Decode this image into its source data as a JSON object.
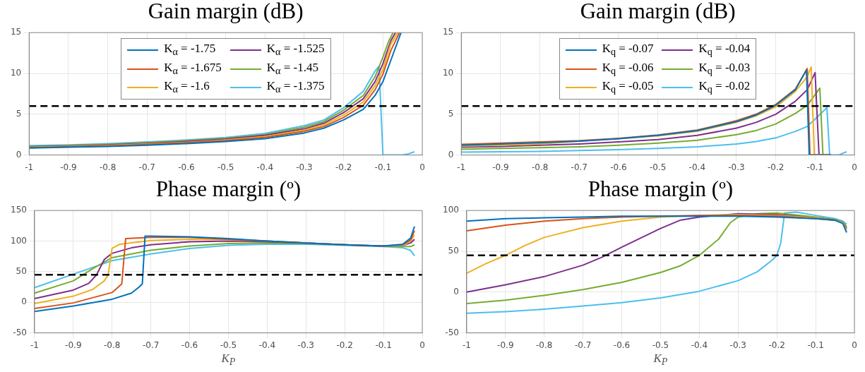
{
  "chart_data": [
    {
      "type": "line",
      "title": "Gain margin (dB)",
      "xlim": [
        -1,
        0
      ],
      "xticks": [
        -1,
        -0.9,
        -0.8,
        -0.7,
        -0.6,
        -0.5,
        -0.4,
        -0.3,
        -0.2,
        -0.1,
        0
      ],
      "ylim": [
        0,
        15
      ],
      "yticks": [
        0,
        5,
        10,
        15
      ],
      "grid": true,
      "legend": "top",
      "ref_lines": [
        {
          "axis": "y",
          "value": 6,
          "color": "#000000",
          "line_style": "dashed"
        }
      ],
      "series": [
        {
          "name": "K$_{α}$ = -1.75",
          "color": "#0072bd",
          "x": [
            -1,
            -0.9,
            -0.8,
            -0.7,
            -0.6,
            -0.5,
            -0.4,
            -0.3,
            -0.25,
            -0.2,
            -0.15,
            -0.12,
            -0.1,
            -0.08,
            -0.054
          ],
          "values": [
            0.85,
            0.95,
            1.05,
            1.2,
            1.4,
            1.65,
            2.0,
            2.7,
            3.3,
            4.3,
            5.6,
            7.3,
            9.0,
            11.6,
            15
          ]
        },
        {
          "name": "K$_{α}$ = -1.675",
          "color": "#d95319",
          "x": [
            -1,
            -0.9,
            -0.8,
            -0.7,
            -0.6,
            -0.5,
            -0.4,
            -0.3,
            -0.25,
            -0.2,
            -0.15,
            -0.12,
            -0.1,
            -0.08,
            -0.058
          ],
          "values": [
            0.9,
            1.0,
            1.12,
            1.28,
            1.5,
            1.75,
            2.15,
            2.9,
            3.5,
            4.6,
            6.1,
            8.0,
            9.9,
            12.8,
            15
          ]
        },
        {
          "name": "K$_{α}$ = -1.6",
          "color": "#edb120",
          "x": [
            -1,
            -0.9,
            -0.8,
            -0.7,
            -0.6,
            -0.5,
            -0.4,
            -0.3,
            -0.25,
            -0.2,
            -0.15,
            -0.12,
            -0.1,
            -0.08,
            -0.062
          ],
          "values": [
            0.95,
            1.05,
            1.18,
            1.35,
            1.55,
            1.85,
            2.25,
            3.05,
            3.7,
            4.9,
            6.5,
            8.5,
            10.5,
            13.6,
            15
          ]
        },
        {
          "name": "K$_{α}$ = -1.525",
          "color": "#7e2f8e",
          "x": [
            -1,
            -0.9,
            -0.8,
            -0.7,
            -0.6,
            -0.5,
            -0.4,
            -0.3,
            -0.25,
            -0.2,
            -0.15,
            -0.12,
            -0.1,
            -0.08,
            -0.068
          ],
          "values": [
            1.0,
            1.1,
            1.24,
            1.42,
            1.65,
            1.95,
            2.4,
            3.2,
            3.9,
            5.2,
            6.9,
            9.0,
            11.2,
            14.0,
            15
          ]
        },
        {
          "name": "K$_{α}$ = -1.45",
          "color": "#77ac30",
          "x": [
            -1,
            -0.9,
            -0.8,
            -0.7,
            -0.6,
            -0.5,
            -0.4,
            -0.3,
            -0.25,
            -0.2,
            -0.15,
            -0.12,
            -0.1,
            -0.085,
            -0.074
          ],
          "values": [
            1.05,
            1.15,
            1.3,
            1.5,
            1.75,
            2.05,
            2.5,
            3.4,
            4.1,
            5.5,
            7.3,
            9.6,
            12.0,
            14.0,
            15
          ]
        },
        {
          "name": "K$_{α}$ = -1.375",
          "color": "#4dbeee",
          "x": [
            -1,
            -0.9,
            -0.8,
            -0.7,
            -0.6,
            -0.5,
            -0.4,
            -0.3,
            -0.25,
            -0.2,
            -0.15,
            -0.12,
            -0.11,
            -0.1,
            -0.08,
            -0.05,
            -0.035,
            -0.02
          ],
          "values": [
            1.15,
            1.25,
            1.4,
            1.6,
            1.85,
            2.15,
            2.65,
            3.6,
            4.3,
            5.8,
            7.8,
            10.3,
            10.9,
            0,
            0,
            0,
            0.15,
            0.4
          ]
        }
      ]
    },
    {
      "type": "line",
      "title": "Gain margin (dB)",
      "xlim": [
        -1,
        0
      ],
      "xticks": [
        -1,
        -0.9,
        -0.8,
        -0.7,
        -0.6,
        -0.5,
        -0.4,
        -0.3,
        -0.2,
        -0.1,
        0
      ],
      "ylim": [
        0,
        15
      ],
      "yticks": [
        0,
        5,
        10,
        15
      ],
      "grid": true,
      "legend": "top",
      "ref_lines": [
        {
          "axis": "y",
          "value": 6,
          "color": "#000000",
          "line_style": "dashed"
        }
      ],
      "series": [
        {
          "name": "K$_{q}$ = -0.07",
          "color": "#0072bd",
          "x": [
            -1,
            -0.9,
            -0.8,
            -0.7,
            -0.6,
            -0.5,
            -0.4,
            -0.3,
            -0.25,
            -0.2,
            -0.15,
            -0.122,
            -0.115,
            -0.06
          ],
          "values": [
            1.2,
            1.35,
            1.5,
            1.7,
            2.0,
            2.4,
            3.0,
            4.1,
            4.9,
            6.1,
            8.0,
            10.4,
            0,
            0
          ]
        },
        {
          "name": "K$_{q}$ = -0.06",
          "color": "#d95319",
          "x": [
            -1,
            -0.9,
            -0.8,
            -0.7,
            -0.6,
            -0.5,
            -0.4,
            -0.3,
            -0.25,
            -0.2,
            -0.15,
            -0.125,
            -0.12,
            -0.113,
            -0.06
          ],
          "values": [
            1.3,
            1.45,
            1.6,
            1.75,
            2.05,
            2.45,
            3.05,
            4.2,
            5.0,
            6.2,
            8.1,
            10.2,
            10.6,
            0,
            0
          ]
        },
        {
          "name": "K$_{q}$ = -0.05",
          "color": "#edb120",
          "x": [
            -1,
            -0.9,
            -0.8,
            -0.7,
            -0.6,
            -0.5,
            -0.4,
            -0.3,
            -0.25,
            -0.2,
            -0.15,
            -0.12,
            -0.11,
            -0.102,
            -0.06
          ],
          "values": [
            1.1,
            1.2,
            1.35,
            1.7,
            2.0,
            2.35,
            2.9,
            4.0,
            4.8,
            5.9,
            7.8,
            9.6,
            10.8,
            0,
            0
          ]
        },
        {
          "name": "K$_{q}$ = -0.04",
          "color": "#7e2f8e",
          "x": [
            -1,
            -0.9,
            -0.8,
            -0.7,
            -0.6,
            -0.5,
            -0.4,
            -0.3,
            -0.25,
            -0.2,
            -0.15,
            -0.12,
            -0.1,
            -0.09,
            -0.06
          ],
          "values": [
            0.95,
            1.05,
            1.2,
            1.35,
            1.6,
            1.9,
            2.4,
            3.3,
            4.0,
            5.0,
            6.6,
            8.0,
            10.1,
            0,
            0
          ]
        },
        {
          "name": "K$_{q}$ = -0.03",
          "color": "#77ac30",
          "x": [
            -1,
            -0.9,
            -0.8,
            -0.7,
            -0.6,
            -0.5,
            -0.4,
            -0.3,
            -0.25,
            -0.2,
            -0.15,
            -0.12,
            -0.1,
            -0.088,
            -0.08,
            -0.06
          ],
          "values": [
            0.7,
            0.8,
            0.9,
            1.0,
            1.2,
            1.45,
            1.8,
            2.5,
            3.0,
            3.8,
            5.1,
            6.1,
            7.4,
            8.2,
            0,
            0
          ]
        },
        {
          "name": "K$_{q}$ = -0.02",
          "color": "#4dbeee",
          "x": [
            -1,
            -0.9,
            -0.8,
            -0.7,
            -0.6,
            -0.5,
            -0.4,
            -0.3,
            -0.25,
            -0.2,
            -0.15,
            -0.12,
            -0.1,
            -0.07,
            -0.063,
            -0.04,
            -0.02
          ],
          "values": [
            0.35,
            0.4,
            0.45,
            0.55,
            0.65,
            0.8,
            1.0,
            1.35,
            1.65,
            2.1,
            2.9,
            3.5,
            4.4,
            5.8,
            0,
            0,
            0.4
          ]
        }
      ]
    },
    {
      "type": "line",
      "title": "Phase margin (º)",
      "xlabel": "K$_{P}$",
      "xlim": [
        -1,
        0
      ],
      "xticks": [
        -1,
        -0.9,
        -0.8,
        -0.7,
        -0.6,
        -0.5,
        -0.4,
        -0.3,
        -0.2,
        -0.1,
        0
      ],
      "ylim": [
        -50,
        150
      ],
      "yticks": [
        -50,
        0,
        50,
        100,
        150
      ],
      "grid": true,
      "ref_lines": [
        {
          "axis": "y",
          "value": 45,
          "color": "#000000",
          "line_style": "dashed"
        }
      ],
      "series": [
        {
          "color": "#0072bd",
          "x": [
            -1,
            -0.9,
            -0.8,
            -0.75,
            -0.73,
            -0.722,
            -0.715,
            -0.7,
            -0.6,
            -0.5,
            -0.4,
            -0.3,
            -0.2,
            -0.1,
            -0.05,
            -0.03,
            -0.02
          ],
          "values": [
            -15,
            -6,
            5,
            15,
            25,
            30,
            108,
            108,
            107,
            104,
            100,
            97,
            94,
            92,
            95,
            105,
            124
          ]
        },
        {
          "color": "#d95319",
          "x": [
            -1,
            -0.9,
            -0.8,
            -0.775,
            -0.765,
            -0.7,
            -0.6,
            -0.5,
            -0.4,
            -0.3,
            -0.2,
            -0.1,
            -0.05,
            -0.03,
            -0.02
          ],
          "values": [
            -10,
            -1,
            16,
            30,
            104,
            106,
            106,
            103,
            100,
            97,
            94,
            92,
            94,
            102,
            117
          ]
        },
        {
          "color": "#edb120",
          "x": [
            -1,
            -0.9,
            -0.85,
            -0.82,
            -0.81,
            -0.8,
            -0.78,
            -0.7,
            -0.6,
            -0.5,
            -0.4,
            -0.3,
            -0.2,
            -0.1,
            -0.05,
            -0.03,
            -0.02
          ],
          "values": [
            -2,
            10,
            21,
            35,
            45,
            88,
            95,
            101,
            103,
            102,
            100,
            97,
            94,
            92,
            93,
            100,
            110
          ]
        },
        {
          "color": "#7e2f8e",
          "x": [
            -1,
            -0.9,
            -0.86,
            -0.84,
            -0.82,
            -0.8,
            -0.75,
            -0.7,
            -0.6,
            -0.5,
            -0.4,
            -0.3,
            -0.2,
            -0.1,
            -0.05,
            -0.03,
            -0.02
          ],
          "values": [
            6,
            20,
            31,
            45,
            70,
            80,
            89,
            94,
            99,
            100,
            99,
            97,
            94,
            92,
            93,
            97,
            103
          ]
        },
        {
          "color": "#77ac30",
          "x": [
            -1,
            -0.9,
            -0.85,
            -0.8,
            -0.7,
            -0.6,
            -0.5,
            -0.4,
            -0.3,
            -0.2,
            -0.1,
            -0.05,
            -0.03,
            -0.02
          ],
          "values": [
            15,
            35,
            55,
            73,
            85,
            92,
            96,
            97,
            96,
            94,
            92,
            91,
            91,
            94
          ]
        },
        {
          "color": "#4dbeee",
          "x": [
            -1,
            -0.9,
            -0.85,
            -0.8,
            -0.7,
            -0.6,
            -0.5,
            -0.4,
            -0.3,
            -0.2,
            -0.1,
            -0.05,
            -0.03,
            -0.02
          ],
          "values": [
            24,
            46,
            57,
            68,
            79,
            88,
            93,
            95,
            95,
            93,
            91,
            89,
            85,
            76
          ]
        }
      ]
    },
    {
      "type": "line",
      "title": "Phase margin (º)",
      "xlabel": "K$_{P}$",
      "xlim": [
        -1,
        0
      ],
      "xticks": [
        -1,
        -0.9,
        -0.8,
        -0.7,
        -0.6,
        -0.5,
        -0.4,
        -0.3,
        -0.2,
        -0.1,
        0
      ],
      "ylim": [
        -50,
        100
      ],
      "yticks": [
        -50,
        0,
        50,
        100
      ],
      "grid": true,
      "ref_lines": [
        {
          "axis": "y",
          "value": 45,
          "color": "#000000",
          "line_style": "dashed"
        }
      ],
      "series": [
        {
          "color": "#0072bd",
          "x": [
            -1,
            -0.9,
            -0.8,
            -0.7,
            -0.6,
            -0.5,
            -0.4,
            -0.3,
            -0.2,
            -0.1,
            -0.05,
            -0.03,
            -0.02
          ],
          "values": [
            87,
            90,
            91,
            92,
            93,
            93,
            93,
            93,
            92,
            90,
            88,
            84,
            73
          ]
        },
        {
          "color": "#d95319",
          "x": [
            -1,
            -0.9,
            -0.8,
            -0.7,
            -0.6,
            -0.5,
            -0.4,
            -0.3,
            -0.2,
            -0.1,
            -0.05
          ],
          "values": [
            75,
            82,
            87,
            90,
            92,
            93,
            94,
            94,
            93,
            90,
            88
          ]
        },
        {
          "color": "#edb120",
          "x": [
            -1,
            -0.95,
            -0.9,
            -0.85,
            -0.8,
            -0.7,
            -0.6,
            -0.5,
            -0.4,
            -0.3,
            -0.2,
            -0.1,
            -0.05,
            -0.03,
            -0.02
          ],
          "values": [
            23,
            35,
            45,
            57,
            67,
            79,
            87,
            92,
            94,
            95,
            94,
            91,
            88,
            85,
            76
          ]
        },
        {
          "color": "#7e2f8e",
          "x": [
            -1,
            -0.9,
            -0.8,
            -0.7,
            -0.65,
            -0.6,
            -0.5,
            -0.45,
            -0.4,
            -0.3,
            -0.2,
            -0.1,
            -0.05,
            -0.03,
            -0.02
          ],
          "values": [
            0,
            9,
            19,
            33,
            43,
            55,
            78,
            88,
            92,
            96,
            95,
            91,
            88,
            85,
            78
          ]
        },
        {
          "color": "#77ac30",
          "x": [
            -1,
            -0.9,
            -0.8,
            -0.7,
            -0.6,
            -0.5,
            -0.45,
            -0.4,
            -0.35,
            -0.32,
            -0.3,
            -0.25,
            -0.2,
            -0.1,
            -0.05,
            -0.03,
            -0.02
          ],
          "values": [
            -14,
            -10,
            -4,
            3,
            12,
            24,
            32,
            45,
            65,
            85,
            92,
            96,
            97,
            92,
            89,
            86,
            80
          ]
        },
        {
          "color": "#4dbeee",
          "x": [
            -1,
            -0.9,
            -0.8,
            -0.7,
            -0.6,
            -0.5,
            -0.4,
            -0.3,
            -0.25,
            -0.21,
            -0.2,
            -0.19,
            -0.18,
            -0.15,
            -0.1,
            -0.05,
            -0.03,
            -0.02
          ],
          "values": [
            -26,
            -24,
            -21,
            -17,
            -13,
            -7,
            1,
            14,
            25,
            40,
            45,
            60,
            97,
            98,
            94,
            90,
            87,
            83
          ]
        }
      ]
    }
  ]
}
